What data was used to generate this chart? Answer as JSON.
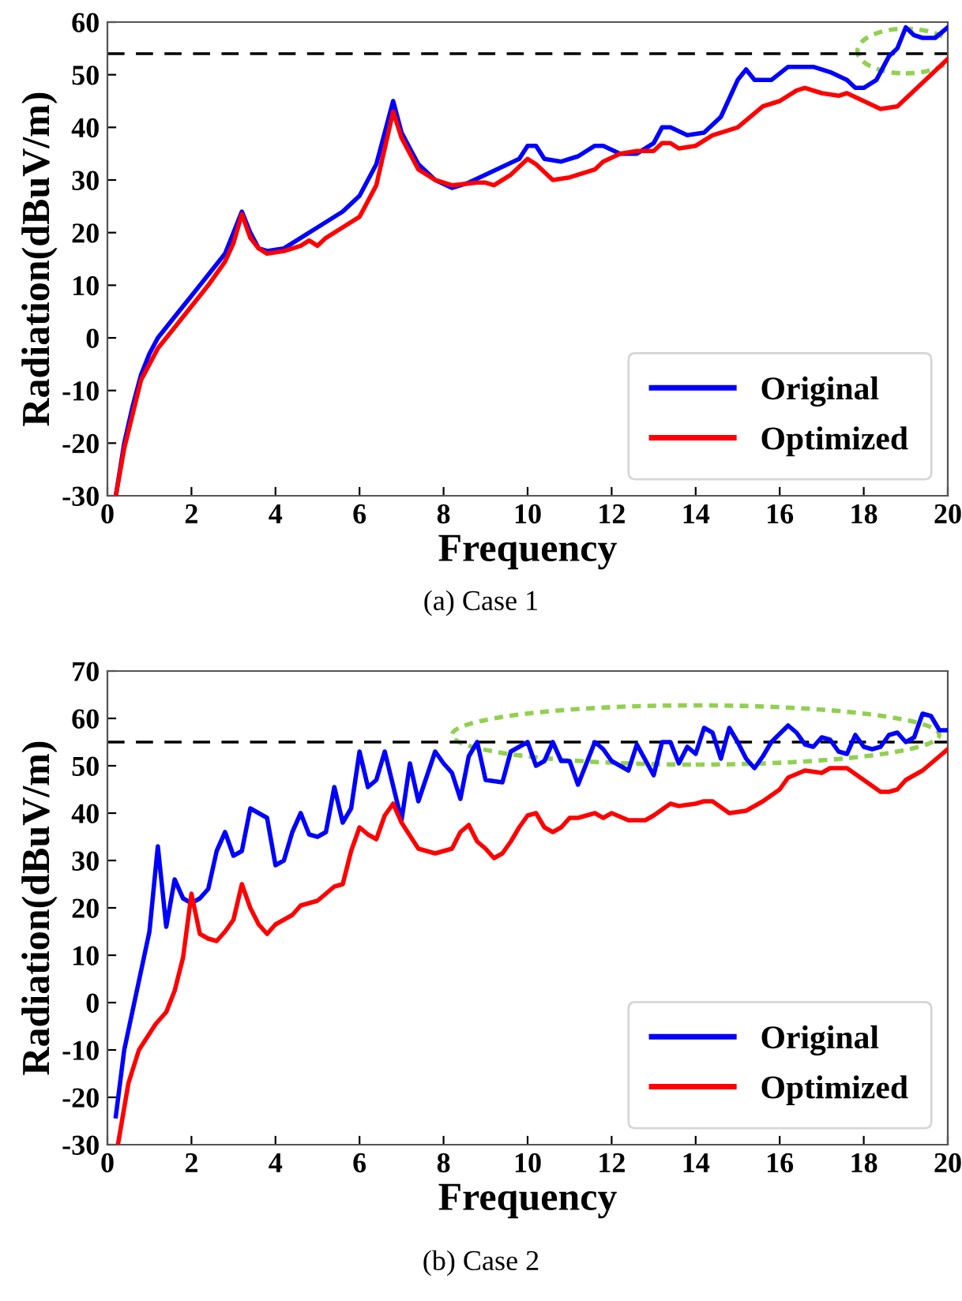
{
  "chart_data": [
    {
      "type": "line",
      "title": "(a) Case 1",
      "xlabel": "Frequency",
      "ylabel": "Radiation(dBuV/m)",
      "xlim": [
        0,
        20
      ],
      "ylim": [
        -30,
        60
      ],
      "xticks": [
        0,
        2,
        4,
        6,
        8,
        10,
        12,
        14,
        16,
        18,
        20
      ],
      "yticks": [
        -30,
        -20,
        -10,
        0,
        10,
        20,
        30,
        40,
        50,
        60
      ],
      "legend": "bottom right",
      "grid": false,
      "line_style": "solid",
      "ref_lines": [
        {
          "axis": "y",
          "value": 54,
          "label": null,
          "color": "#000000",
          "line_style": "dashed"
        }
      ],
      "series": [
        {
          "name": "Original",
          "color": "#0000ff",
          "x": [
            0.2,
            0.4,
            0.6,
            0.8,
            1.0,
            1.2,
            1.6,
            2.0,
            2.4,
            2.8,
            3.0,
            3.2,
            3.4,
            3.6,
            3.8,
            4.2,
            4.6,
            5.0,
            5.6,
            6.0,
            6.4,
            6.8,
            7.0,
            7.4,
            7.8,
            8.2,
            8.6,
            9.0,
            9.4,
            9.8,
            10.0,
            10.2,
            10.4,
            10.8,
            11.2,
            11.6,
            11.8,
            12.2,
            12.6,
            13.0,
            13.2,
            13.4,
            13.8,
            14.2,
            14.6,
            15.0,
            15.2,
            15.4,
            15.8,
            16.2,
            16.6,
            16.8,
            17.2,
            17.6,
            17.8,
            18.0,
            18.3,
            18.6,
            18.8,
            19.0,
            19.2,
            19.4,
            19.7,
            20.0
          ],
          "values": [
            -30,
            -20,
            -13,
            -7,
            -3,
            0,
            4,
            8,
            12,
            16,
            20,
            24,
            20,
            17,
            16.5,
            17,
            19,
            21,
            24,
            27,
            33,
            45,
            39,
            33,
            30,
            28.5,
            29.5,
            31,
            32.5,
            34,
            36.5,
            36.5,
            34,
            33.5,
            34.5,
            36.5,
            36.5,
            35,
            35,
            37,
            40,
            40,
            38.5,
            39,
            42,
            49,
            51,
            49,
            49,
            51.5,
            51.5,
            51.5,
            50.5,
            49,
            47.5,
            47.5,
            49,
            53.5,
            55,
            59,
            57.5,
            57,
            57,
            59
          ]
        },
        {
          "name": "Optimized",
          "color": "#ff0000",
          "x": [
            0.2,
            0.4,
            0.8,
            1.2,
            1.6,
            2.0,
            2.4,
            2.8,
            3.0,
            3.2,
            3.4,
            3.6,
            3.8,
            4.2,
            4.6,
            4.8,
            5.0,
            5.2,
            5.6,
            6.0,
            6.2,
            6.4,
            6.8,
            7.0,
            7.4,
            7.8,
            8.2,
            8.8,
            9.0,
            9.2,
            9.6,
            10.0,
            10.2,
            10.6,
            11.0,
            11.6,
            11.8,
            12.2,
            12.6,
            13.0,
            13.2,
            13.4,
            13.6,
            14.0,
            14.4,
            15.0,
            15.6,
            16.0,
            16.4,
            16.6,
            17.0,
            17.4,
            17.6,
            18.0,
            18.4,
            18.8,
            19.2,
            19.6,
            20.0
          ],
          "values": [
            -30,
            -21,
            -8,
            -2,
            2,
            6,
            10,
            14.5,
            18,
            23.5,
            19,
            17,
            16,
            16.5,
            17.5,
            18.5,
            17.5,
            19,
            21,
            23,
            26,
            29,
            43,
            38,
            32,
            30,
            29,
            29.5,
            29.5,
            29,
            31,
            34,
            33,
            30,
            30.5,
            32,
            33.5,
            35,
            35.5,
            35.5,
            37,
            37,
            36,
            36.5,
            38.5,
            40,
            44,
            45,
            47,
            47.5,
            46.5,
            46,
            46.5,
            45,
            43.5,
            44,
            47,
            50,
            53
          ]
        }
      ]
    },
    {
      "type": "line",
      "title": "(b) Case 2",
      "xlabel": "Frequency",
      "ylabel": "Radiation(dBuV/m)",
      "xlim": [
        0,
        20
      ],
      "ylim": [
        -30,
        70
      ],
      "xticks": [
        0,
        2,
        4,
        6,
        8,
        10,
        12,
        14,
        16,
        18,
        20
      ],
      "yticks": [
        -30,
        -20,
        -10,
        0,
        10,
        20,
        30,
        40,
        50,
        60,
        70
      ],
      "legend": "bottom right",
      "grid": false,
      "line_style": "solid",
      "ref_lines": [
        {
          "axis": "y",
          "value": 55,
          "label": null,
          "color": "#000000",
          "line_style": "dashed"
        }
      ],
      "series": [
        {
          "name": "Original",
          "color": "#0000ff",
          "x": [
            0.2,
            0.4,
            1.0,
            1.2,
            1.4,
            1.6,
            1.8,
            2.0,
            2.2,
            2.4,
            2.6,
            2.8,
            3.0,
            3.2,
            3.4,
            3.6,
            3.8,
            4.0,
            4.2,
            4.4,
            4.6,
            4.8,
            5.0,
            5.2,
            5.4,
            5.6,
            5.8,
            6.0,
            6.2,
            6.4,
            6.6,
            7.0,
            7.2,
            7.4,
            7.8,
            8.0,
            8.2,
            8.4,
            8.6,
            8.8,
            9.0,
            9.4,
            9.6,
            10.0,
            10.2,
            10.4,
            10.6,
            10.8,
            11.0,
            11.2,
            11.6,
            11.8,
            12.0,
            12.4,
            12.6,
            13.0,
            13.2,
            13.4,
            13.6,
            13.8,
            14.0,
            14.2,
            14.4,
            14.6,
            14.8,
            15.0,
            15.2,
            15.4,
            15.6,
            15.8,
            16.2,
            16.4,
            16.6,
            16.8,
            17.0,
            17.2,
            17.4,
            17.6,
            17.8,
            18.0,
            18.2,
            18.4,
            18.6,
            18.8,
            19.0,
            19.2,
            19.4,
            19.6,
            19.8,
            20.0
          ],
          "values": [
            -24,
            -10,
            15,
            33,
            16,
            26,
            22,
            21,
            22,
            24,
            32,
            36,
            31,
            32,
            41,
            40,
            39,
            29,
            30,
            36,
            40,
            35.5,
            35,
            36,
            45.5,
            38,
            41,
            53,
            45.5,
            47,
            53,
            38.5,
            50.5,
            42.5,
            53,
            50.5,
            48.5,
            43,
            52,
            55,
            47,
            46.5,
            53,
            55,
            50,
            51,
            55,
            51,
            51,
            46,
            55,
            53.5,
            51,
            49,
            54.5,
            48,
            55,
            55,
            50.5,
            54,
            52.5,
            58,
            57,
            51.5,
            58,
            55,
            51.5,
            49.5,
            52,
            55,
            58.5,
            57,
            54.5,
            54,
            56,
            55.5,
            53,
            52.5,
            56.5,
            54,
            53.5,
            54,
            56.5,
            57,
            55,
            56,
            61,
            60.5,
            57.5,
            57.5
          ]
        },
        {
          "name": "Optimized",
          "color": "#ff0000",
          "x": [
            0.25,
            0.5,
            0.75,
            1.15,
            1.4,
            1.6,
            1.8,
            2.0,
            2.2,
            2.4,
            2.6,
            2.8,
            3.0,
            3.2,
            3.4,
            3.6,
            3.8,
            4.0,
            4.2,
            4.4,
            4.6,
            4.8,
            5.0,
            5.2,
            5.4,
            5.6,
            5.8,
            6.0,
            6.2,
            6.4,
            6.6,
            6.8,
            7.0,
            7.4,
            7.6,
            7.8,
            8.0,
            8.2,
            8.4,
            8.6,
            8.8,
            9.0,
            9.2,
            9.4,
            9.6,
            9.8,
            10.0,
            10.2,
            10.4,
            10.6,
            10.8,
            11.0,
            11.2,
            11.4,
            11.6,
            11.8,
            12.0,
            12.4,
            12.8,
            13.0,
            13.4,
            13.6,
            14.0,
            14.2,
            14.4,
            14.8,
            15.2,
            15.4,
            15.6,
            16.0,
            16.2,
            16.6,
            17.0,
            17.2,
            17.6,
            18.0,
            18.4,
            18.6,
            18.8,
            19.0,
            19.4,
            19.8,
            20.0
          ],
          "values": [
            -30,
            -17,
            -10,
            -4.5,
            -2,
            2.5,
            9.5,
            23,
            14.5,
            13.5,
            13,
            15,
            17.5,
            25,
            20,
            16.5,
            14.5,
            16.5,
            17.5,
            18.5,
            20.5,
            21,
            21.5,
            23,
            24.5,
            25,
            32,
            37,
            35.5,
            34.5,
            39.5,
            42,
            38,
            32.5,
            32,
            31.5,
            32,
            32.5,
            36,
            37.5,
            34,
            32.5,
            30.5,
            31.5,
            34,
            37,
            39.5,
            40,
            37,
            36,
            37,
            39,
            39,
            39.5,
            40,
            39,
            40,
            38.5,
            38.5,
            39.5,
            42,
            41.5,
            42,
            42.5,
            42.5,
            40,
            40.5,
            41.5,
            42.5,
            45,
            47.5,
            49,
            48.5,
            49.5,
            49.5,
            47,
            44.5,
            44.5,
            45,
            47,
            49,
            52,
            53.5
          ]
        }
      ]
    }
  ]
}
